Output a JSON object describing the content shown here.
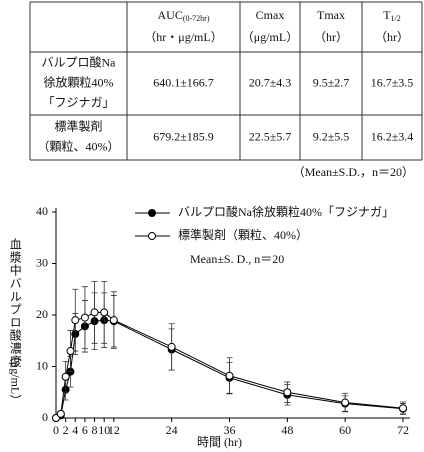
{
  "table": {
    "header": [
      {
        "main": "AUC",
        "sub": "(0-72hr)",
        "unit": "（hr・μg/mL）"
      },
      {
        "main": "Cmax",
        "unit": "（μg/mL）"
      },
      {
        "main": "Tmax",
        "unit": "（hr）"
      },
      {
        "main": "T",
        "sub": "1/2",
        "unit": "（hr）"
      }
    ],
    "rows": [
      {
        "name": [
          "バルプロ酸Na",
          "徐放顆粒40%",
          "「フジナガ」"
        ],
        "cells": [
          "640.1±166.7",
          "20.7±4.3",
          "9.5±2.7",
          "16.7±3.5"
        ]
      },
      {
        "name": [
          "標準製剤",
          "（顆粒、40%）"
        ],
        "cells": [
          "679.2±185.9",
          "22.5±5.7",
          "9.2±5.5",
          "16.2±3.4"
        ]
      }
    ],
    "note": "（Mean±S.D.，n＝20）"
  },
  "chart_data": {
    "type": "line",
    "ylabel": "血漿中バルプロ酸濃度",
    "yunit": "（μg/mL）",
    "xlabel": "時間 (hr)",
    "annotation": "Mean±S. D., n＝20",
    "x": [
      0,
      1,
      2,
      3,
      4,
      6,
      8,
      10,
      12,
      24,
      36,
      48,
      60,
      72
    ],
    "series": [
      {
        "name": "バルプロ酸Na徐放顆粒40%「フジナガ」",
        "color": "#000000",
        "marker": "filled",
        "values": [
          0,
          0.5,
          5.5,
          9,
          16.3,
          17.8,
          18.8,
          19,
          18.8,
          13.3,
          7.8,
          4.5,
          2.8,
          1.8
        ],
        "errors": [
          0,
          0.3,
          2,
          3,
          4,
          5,
          5.5,
          5.3,
          5,
          4,
          3,
          2,
          1.5,
          1
        ]
      },
      {
        "name": "標準製剤（顆粒、40%）",
        "color": "#000000",
        "marker": "open",
        "values": [
          0,
          0.8,
          8,
          13,
          19,
          19.5,
          20.5,
          20.5,
          19,
          13.8,
          8.2,
          5,
          3,
          1.9
        ],
        "errors": [
          0,
          0.5,
          3,
          4,
          6,
          6,
          6,
          6,
          5.5,
          4.5,
          3.5,
          2,
          1.8,
          1.2
        ]
      }
    ],
    "xlim": [
      0,
      72
    ],
    "ylim": [
      0,
      40
    ],
    "xticks": [
      0,
      2,
      4,
      6,
      8,
      10,
      12,
      24,
      36,
      48,
      60,
      72
    ],
    "yticks": [
      0,
      10,
      20,
      30,
      40
    ]
  }
}
